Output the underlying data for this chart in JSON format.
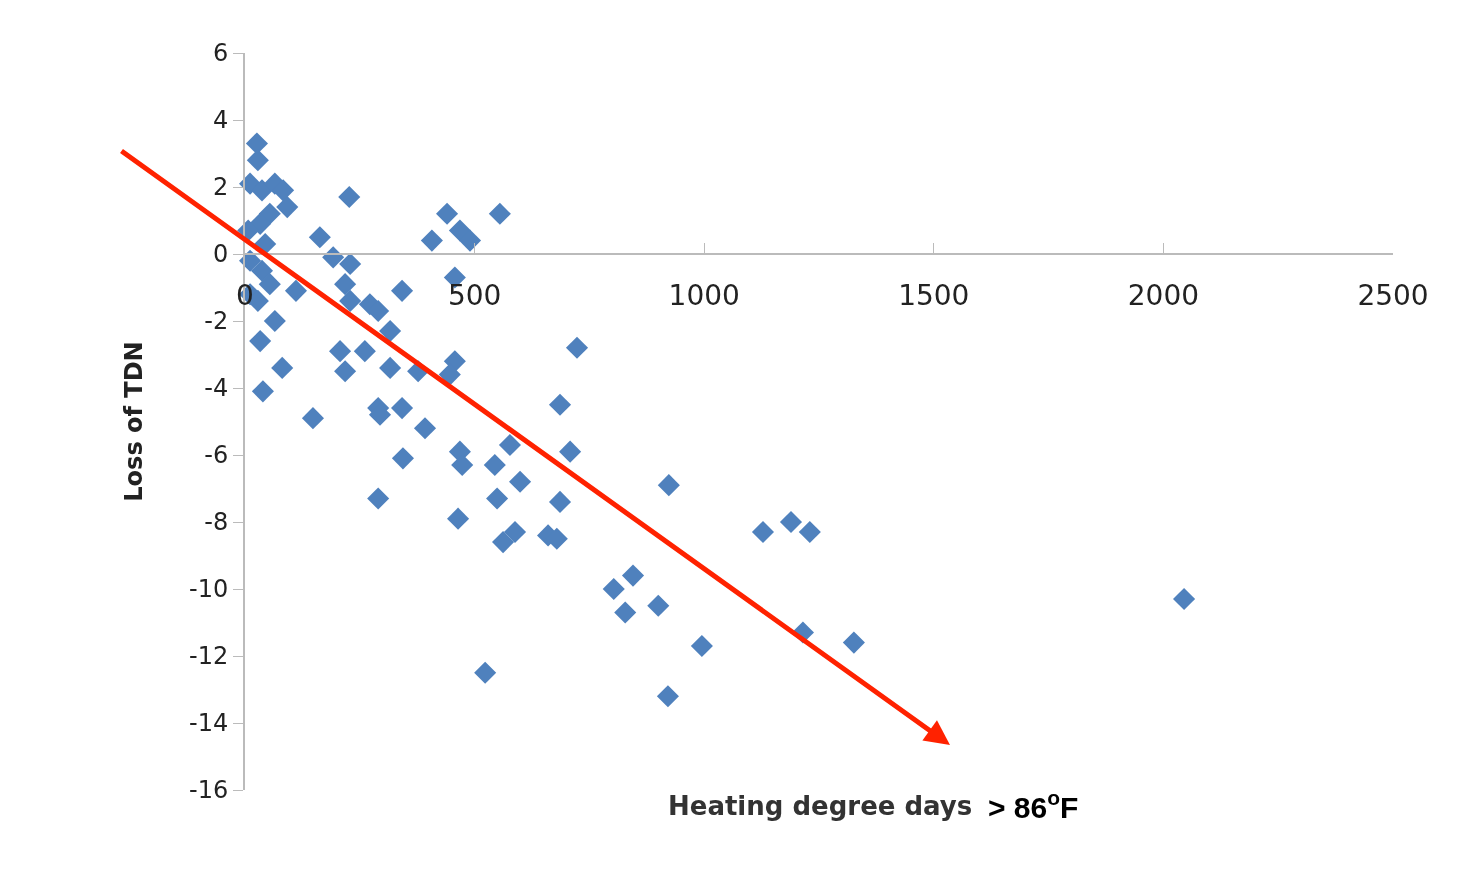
{
  "chart_data": {
    "type": "scatter",
    "xlabel": "Heating degree days",
    "ylabel": "Loss of TDN",
    "annotations": [
      "> 86$^{o}$F"
    ],
    "xlim": [
      0,
      2500
    ],
    "xticks": [
      0,
      500,
      1000,
      1500,
      2000,
      2500
    ],
    "ylim": [
      -16,
      6
    ],
    "yticks": [
      -16,
      -14,
      -12,
      -10,
      -8,
      -6,
      -4,
      -2,
      0,
      2,
      4,
      6
    ],
    "series": [
      {
        "marker": "diamond",
        "color": "#4f81bd",
        "x": [
          26,
          28,
          11,
          37,
          65,
          83,
          92,
          54,
          33,
          7,
          44,
          11,
          37,
          11,
          28,
          54,
          65,
          33,
          81,
          39,
          111,
          163,
          192,
          229,
          227,
          218,
          229,
          207,
          218,
          148,
          272,
          290,
          261,
          316,
          342,
          316,
          290,
          294,
          342,
          290,
          344,
          377,
          392,
          407,
          440,
          468,
          490,
          457,
          457,
          446,
          468,
          473,
          464,
          555,
          523,
          544,
          549,
          577,
          562,
          588,
          599,
          660,
          679,
          686,
          686,
          708,
          723,
          803,
          828,
          845,
          900,
          921,
          923,
          995,
          1128,
          1189,
          1230,
          1215,
          1326,
          2045
        ],
        "values": [
          3.3,
          2.8,
          2.1,
          1.9,
          2.1,
          1.9,
          1.4,
          1.2,
          0.9,
          0.7,
          0.3,
          -0.2,
          -0.5,
          -1.2,
          -1.4,
          -0.9,
          -2.0,
          -2.6,
          -3.4,
          -4.1,
          -1.1,
          0.5,
          -0.1,
          -0.3,
          1.7,
          -0.9,
          -1.4,
          -2.9,
          -3.5,
          -4.9,
          -1.5,
          -1.7,
          -2.9,
          -2.3,
          -1.1,
          -3.4,
          -4.6,
          -4.8,
          -4.6,
          -7.3,
          -6.1,
          -3.5,
          -5.2,
          0.4,
          1.2,
          0.7,
          0.4,
          -0.7,
          -3.2,
          -3.6,
          -5.9,
          -6.3,
          -7.9,
          1.2,
          -12.5,
          -6.3,
          -7.3,
          -5.7,
          -8.6,
          -8.3,
          -6.8,
          -8.4,
          -8.5,
          -7.4,
          -4.5,
          -5.9,
          -2.8,
          -10.0,
          -10.7,
          -9.6,
          -10.5,
          -13.2,
          -6.9,
          -11.7,
          -8.3,
          -8.0,
          -8.3,
          -11.3,
          -11.6,
          -10.3
        ]
      }
    ]
  }
}
